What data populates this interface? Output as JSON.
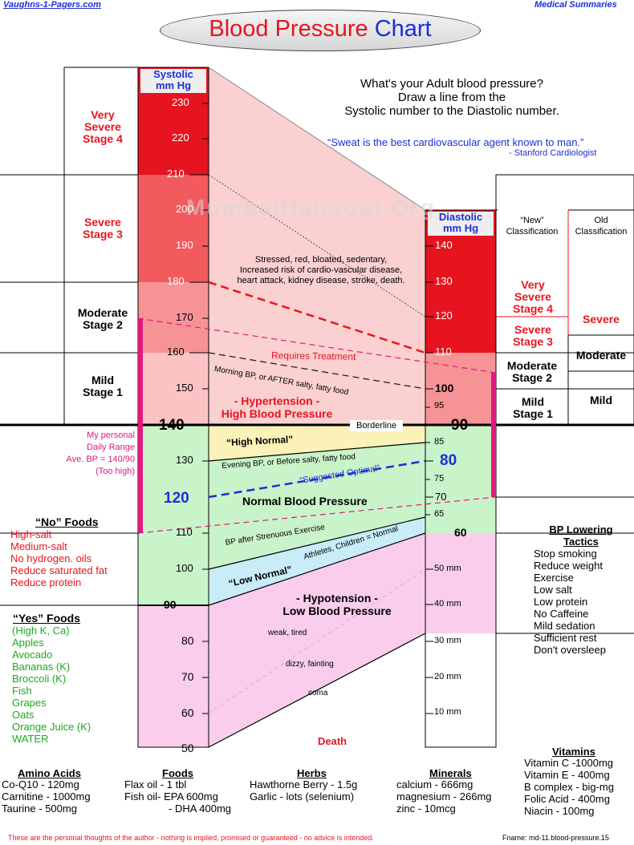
{
  "header": {
    "site": "Vaughns-1-Pagers.com",
    "section": "Medical Summaries",
    "title_red": "Blood Pressure",
    "title_blue": "Chart"
  },
  "intro": {
    "line1": "What's your Adult blood pressure?",
    "line2": "Draw a line from the",
    "line3": "Systolic number to the Diastolic number.",
    "quote": "“Sweat is the best cardiovascular agent known to man.”",
    "quote_by": "- Stanford Cardiologist"
  },
  "watermark": "MumbaiHangout.Org",
  "chart_data": {
    "type": "nomogram",
    "systolic": {
      "header_line1": "Systolic",
      "header_line2": "mm Hg",
      "ticks": [
        "230",
        "220",
        "210",
        "200",
        "190",
        "180",
        "170",
        "160",
        "150",
        "140",
        "130",
        "120",
        "110",
        "100",
        "90",
        "80",
        "70",
        "60",
        "50"
      ],
      "range": [
        50,
        235
      ]
    },
    "diastolic": {
      "header_line1": "Diastolic",
      "header_line2": "mm Hg",
      "ticks": [
        "140",
        "130",
        "120",
        "110",
        "100",
        "95",
        "90",
        "85",
        "80",
        "75",
        "70",
        "65",
        "60"
      ],
      "mm_ticks": [
        "50 mm",
        "40 mm",
        "30 mm",
        "20 mm",
        "10 mm"
      ],
      "range": [
        60,
        140
      ]
    },
    "stages_left": [
      {
        "label1": "Very",
        "label2": "Severe",
        "label3": "Stage 4",
        "from": 210,
        "to": 235
      },
      {
        "label1": "Severe",
        "label2": "Stage 3",
        "label3": "",
        "from": 180,
        "to": 210
      },
      {
        "label1": "Moderate",
        "label2": "Stage 2",
        "label3": "",
        "from": 160,
        "to": 180
      },
      {
        "label1": "Mild",
        "label2": "Stage 1",
        "label3": "",
        "from": 140,
        "to": 160
      }
    ],
    "classification": {
      "new_header1": "“New”",
      "new_header2": "Classification",
      "old_header1": "Old",
      "old_header2": "Classification",
      "new": [
        {
          "label1": "Very",
          "label2": "Severe",
          "label3": "Stage 4"
        },
        {
          "label1": "Severe",
          "label2": "Stage 3",
          "label3": ""
        },
        {
          "label1": "Moderate",
          "label2": "Stage 2",
          "label3": ""
        },
        {
          "label1": "Mild",
          "label2": "Stage 1",
          "label3": ""
        }
      ],
      "old": [
        "Severe",
        "Moderate",
        "Mild"
      ]
    },
    "zone_text": {
      "stressed1": "Stressed, red, bloated, sedentary,",
      "stressed2": "Increased risk of cardio-vascular disease,",
      "stressed3": "heart attack, kidney disease, stroke, death.",
      "requires": "Requires Treatment",
      "morning": "Morning BP, or AFTER salty, fatty food",
      "hyper1": "- Hypertension -",
      "hyper2": "High  Blood  Pressure",
      "borderline": "Borderline",
      "high_normal": "“High Normal”",
      "evening": "Evening BP, or Before salty, fatty food",
      "suggested": "“Suggested Optimal”",
      "normal": "Normal Blood Pressure",
      "after_ex": "BP after Strenuous Exercise",
      "athletes": "Athletes, Children = Normal",
      "low_normal": "“Low Normal”",
      "hypo1": "- Hypotension -",
      "hypo2": "Low  Blood  Pressure",
      "weak": "weak, tired",
      "dizzy": "dizzy, fainting",
      "coma": "coma",
      "death": "Death"
    },
    "personal": {
      "line1": "My personal",
      "line2": "Daily Range",
      "line3": "Ave. BP = 140/90",
      "line4": "(Too high)"
    },
    "reference_lines": [
      {
        "systolic": 180,
        "diastolic": 110,
        "color": "#e8141e",
        "label": "Requires Treatment"
      },
      {
        "systolic": 170,
        "diastolic": 105,
        "color": "#e0197e",
        "label": ""
      },
      {
        "systolic": 160,
        "diastolic": 100,
        "color": "#222222",
        "label": "Morning BP, or AFTER salty, fatty food"
      },
      {
        "systolic": 140,
        "diastolic": 90,
        "color": "#000000",
        "label": "Borderline"
      },
      {
        "systolic": 130,
        "diastolic": 85,
        "color": "#000000",
        "label": "Evening BP, or Before salty, fatty food"
      },
      {
        "systolic": 120,
        "diastolic": 80,
        "color": "#1b2fd8",
        "label": "Suggested Optimal"
      },
      {
        "systolic": 110,
        "diastolic": 70,
        "color": "#e0197e",
        "label": "BP after Strenuous Exercise"
      },
      {
        "systolic": 100,
        "diastolic": 65,
        "color": "#000000",
        "label": "Athletes, Children = Normal"
      },
      {
        "systolic": 90,
        "diastolic": 60,
        "color": "#000000",
        "label": ""
      }
    ]
  },
  "no_foods": {
    "title": "“No” Foods",
    "items": [
      "High-salt",
      "Medium-salt",
      "No hydrogen. oils",
      "Reduce saturated fat",
      "Reduce protein"
    ]
  },
  "yes_foods": {
    "title": "“Yes” Foods",
    "items": [
      "(High K, Ca)",
      "Apples",
      "Avocado",
      "Bananas (K)",
      "Broccoli (K)",
      "Fish",
      "Grapes",
      "Oats",
      "Orange Juice (K)",
      "WATER"
    ]
  },
  "tactics": {
    "title1": "BP Lowering",
    "title2": "Tactics",
    "items": [
      "Stop smoking",
      "Reduce weight",
      "Exercise",
      "Low salt",
      "Low protein",
      "No Caffeine",
      "Mild sedation",
      "Sufficient rest",
      "Don't oversleep"
    ]
  },
  "amino": {
    "title": "Amino Acids",
    "items": [
      "Co-Q10   -    120mg",
      "Carnitine  - 1000mg",
      "Taurine   -    500mg"
    ]
  },
  "foods": {
    "title": "Foods",
    "items": [
      "Flax oil   -  1 tbl",
      "Fish oil- EPA 600mg",
      "- DHA 400mg"
    ]
  },
  "herbs": {
    "title": "Herbs",
    "items": [
      "Hawthorne Berry - 1.5g",
      "Garlic - lots (selenium)"
    ]
  },
  "minerals": {
    "title": "Minerals",
    "items": [
      "calcium     -  666mg",
      "magnesium  - 266mg",
      "zinc          -  10mcg"
    ]
  },
  "vitamins": {
    "title": "Vitamins",
    "items": [
      "Vitamin C  -1000mg",
      "Vitamin E   -  400mg",
      "B complex - big-mg",
      "Folic Acid  - 400mg",
      "Niacin      -  100mg"
    ]
  },
  "footer": {
    "disclaimer": "These are the personal thoughts of the author - nothing is implied, promised or guaranteed - no advice is intended.",
    "fname": "Fname: md-11.blood-pressure.15"
  }
}
